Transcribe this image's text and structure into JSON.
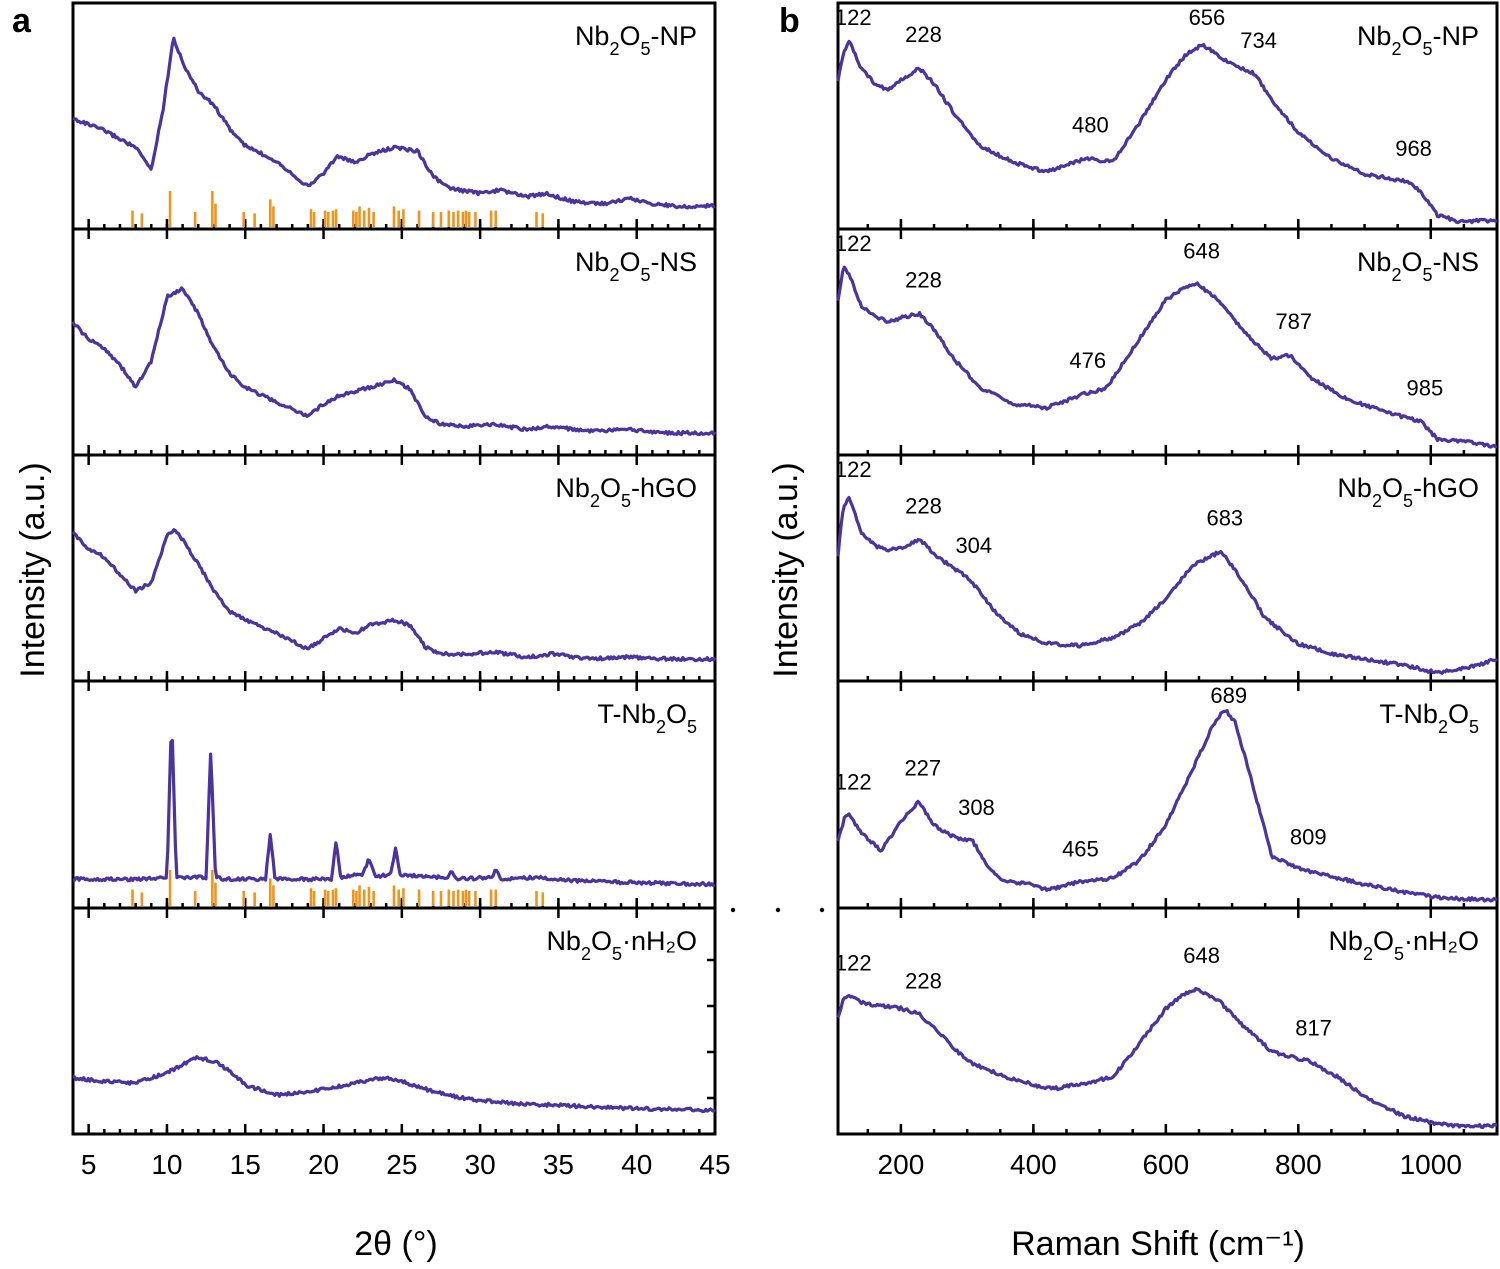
{
  "figure": {
    "panel_a": {
      "letter": "a"
    },
    "panel_b": {
      "letter": "b"
    }
  },
  "chart_data": [
    {
      "id": "xrd",
      "type": "line",
      "panel": "a",
      "xlabel": "2θ (°)",
      "ylabel": "Intensity (a.u.)",
      "xlim": [
        4,
        45
      ],
      "xticks": [
        5,
        10,
        15,
        20,
        25,
        30,
        35,
        40,
        45
      ],
      "xtick_labels": [
        "5",
        "10",
        "15",
        "20",
        "25",
        "30",
        "35",
        "40",
        "45"
      ],
      "ylim": [
        0,
        1
      ],
      "reference_lines_2theta": [
        7.8,
        8.4,
        10.2,
        11.8,
        12.9,
        13.1,
        14.9,
        15.6,
        16.6,
        16.8,
        19.2,
        19.4,
        20.1,
        20.3,
        20.6,
        20.8,
        21.9,
        22.1,
        22.3,
        22.6,
        22.9,
        23.2,
        24.5,
        24.8,
        25.1,
        26.1,
        27.0,
        27.5,
        28.0,
        28.3,
        28.6,
        28.9,
        29.1,
        29.3,
        29.7,
        30.7,
        31.0,
        33.6,
        34.0
      ],
      "reference_line_intensities": [
        0.3,
        0.2,
        1.0,
        0.25,
        1.0,
        0.55,
        0.25,
        0.2,
        0.7,
        0.45,
        0.35,
        0.25,
        0.3,
        0.25,
        0.3,
        0.35,
        0.3,
        0.25,
        0.45,
        0.3,
        0.4,
        0.25,
        0.45,
        0.3,
        0.35,
        0.3,
        0.25,
        0.25,
        0.3,
        0.25,
        0.3,
        0.25,
        0.3,
        0.25,
        0.25,
        0.3,
        0.3,
        0.25,
        0.2
      ],
      "series": [
        {
          "name": "Nb2O5-NP",
          "label_main": "Nb",
          "label_sub1": "2",
          "label_mid": "O",
          "label_sub2": "5",
          "label_suffix": "-NP",
          "ref_bars": true,
          "x": [
            4,
            6,
            8,
            9,
            9.8,
            10.4,
            11,
            12,
            13,
            14,
            15,
            17,
            19,
            20,
            20.9,
            22,
            23,
            24.5,
            26,
            27,
            28,
            30,
            31.3,
            33,
            34.2,
            36,
            38,
            39.5,
            41,
            43,
            45
          ],
          "y": [
            0.52,
            0.45,
            0.35,
            0.22,
            0.6,
            1.0,
            0.85,
            0.68,
            0.6,
            0.46,
            0.36,
            0.27,
            0.12,
            0.2,
            0.3,
            0.26,
            0.31,
            0.35,
            0.33,
            0.18,
            0.11,
            0.08,
            0.1,
            0.06,
            0.08,
            0.03,
            0.02,
            0.05,
            0.02,
            0.0,
            0.01
          ]
        },
        {
          "name": "Nb2O5-NS",
          "label_main": "Nb",
          "label_sub1": "2",
          "label_mid": "O",
          "label_sub2": "5",
          "label_suffix": "-NS",
          "ref_bars": false,
          "x": [
            4,
            5,
            6,
            7,
            8,
            9,
            10,
            11,
            12,
            13,
            14,
            15,
            17,
            19,
            20,
            21,
            23,
            24.5,
            25.5,
            26.5,
            27.5,
            29,
            31,
            33,
            34.5,
            37,
            39.5,
            42,
            45
          ],
          "y": [
            0.65,
            0.55,
            0.5,
            0.4,
            0.27,
            0.42,
            0.8,
            0.85,
            0.7,
            0.5,
            0.35,
            0.27,
            0.18,
            0.1,
            0.17,
            0.22,
            0.27,
            0.31,
            0.26,
            0.1,
            0.05,
            0.04,
            0.05,
            0.02,
            0.04,
            0.01,
            0.02,
            0.0,
            0.0
          ]
        },
        {
          "name": "Nb2O5-hGO",
          "label_main": "Nb",
          "label_sub1": "2",
          "label_mid": "O",
          "label_sub2": "5",
          "label_suffix": "-hGO",
          "ref_bars": false,
          "x": [
            4,
            5,
            6,
            7,
            8,
            9,
            10,
            10.5,
            11,
            12,
            13,
            14,
            15,
            17,
            19,
            20,
            21,
            22,
            23,
            24.5,
            25.5,
            26.5,
            27.5,
            29,
            31,
            33,
            34.5,
            37,
            39.5,
            42,
            45
          ],
          "y": [
            0.74,
            0.65,
            0.6,
            0.5,
            0.4,
            0.45,
            0.72,
            0.77,
            0.7,
            0.56,
            0.4,
            0.28,
            0.23,
            0.15,
            0.06,
            0.12,
            0.18,
            0.15,
            0.2,
            0.23,
            0.2,
            0.07,
            0.03,
            0.03,
            0.04,
            0.01,
            0.03,
            0.0,
            0.01,
            0.0,
            0.0
          ]
        },
        {
          "name": "T-Nb2O5",
          "label_main": "T-Nb",
          "label_sub1": "2",
          "label_mid": "O",
          "label_sub2": "5",
          "label_suffix": "",
          "ref_bars": true,
          "x": [
            4,
            7.8,
            10.0,
            10.3,
            10.6,
            12.5,
            12.8,
            13.1,
            13.5,
            16.3,
            16.6,
            16.9,
            20.5,
            20.8,
            21.1,
            22.5,
            22.9,
            23.3,
            24.3,
            24.6,
            24.9,
            26.1,
            27.9,
            28.2,
            28.5,
            30.8,
            31.0,
            31.3,
            33.6,
            36,
            40,
            45
          ],
          "y": [
            0.04,
            0.04,
            0.05,
            1.0,
            0.05,
            0.05,
            0.8,
            0.06,
            0.04,
            0.04,
            0.31,
            0.04,
            0.04,
            0.26,
            0.05,
            0.07,
            0.16,
            0.05,
            0.07,
            0.22,
            0.06,
            0.06,
            0.05,
            0.09,
            0.04,
            0.05,
            0.1,
            0.04,
            0.05,
            0.03,
            0.02,
            0.01
          ]
        },
        {
          "name": "Nb2O5·nH2O",
          "label_main": "Nb",
          "label_sub1": "2",
          "label_mid": "O",
          "label_sub2": "5",
          "label_suffix": "·nH₂O",
          "ref_bars": false,
          "x": [
            4,
            6,
            8,
            10,
            11,
            12,
            13,
            14,
            15,
            17,
            19,
            21,
            23,
            24,
            25,
            27,
            29,
            32,
            35,
            40,
            45
          ],
          "y": [
            0.2,
            0.18,
            0.17,
            0.23,
            0.28,
            0.32,
            0.3,
            0.24,
            0.16,
            0.1,
            0.12,
            0.15,
            0.19,
            0.2,
            0.18,
            0.12,
            0.08,
            0.05,
            0.04,
            0.02,
            0.01
          ]
        }
      ]
    },
    {
      "id": "raman",
      "type": "line",
      "panel": "b",
      "xlabel": "Raman Shift (cm⁻¹)",
      "ylabel": "Intensity (a.u.)",
      "xlim": [
        105,
        1100
      ],
      "xticks": [
        200,
        400,
        600,
        800,
        1000
      ],
      "xtick_labels": [
        "200",
        "400",
        "600",
        "800",
        "1000"
      ],
      "ylim": [
        0,
        1
      ],
      "series": [
        {
          "name": "Nb2O5-NP",
          "label_main": "Nb",
          "label_sub1": "2",
          "label_mid": "O",
          "label_sub2": "5",
          "label_suffix": "-NP",
          "x": [
            105,
            113,
            122,
            140,
            160,
            180,
            200,
            228,
            250,
            280,
            320,
            370,
            420,
            480,
            520,
            560,
            600,
            630,
            656,
            690,
            734,
            760,
            800,
            850,
            900,
            968,
            985,
            1010,
            1040,
            1100
          ],
          "y": [
            0.72,
            0.85,
            0.92,
            0.78,
            0.7,
            0.67,
            0.72,
            0.78,
            0.7,
            0.55,
            0.38,
            0.3,
            0.25,
            0.32,
            0.3,
            0.5,
            0.72,
            0.85,
            0.9,
            0.82,
            0.75,
            0.62,
            0.45,
            0.32,
            0.24,
            0.2,
            0.15,
            0.03,
            0.0,
            0.0
          ],
          "peaks": [
            {
              "label": "122",
              "x": 122
            },
            {
              "label": "228",
              "x": 228
            },
            {
              "label": "480",
              "x": 480
            },
            {
              "label": "656",
              "x": 656
            },
            {
              "label": "734",
              "x": 734
            },
            {
              "label": "968",
              "x": 968
            }
          ]
        },
        {
          "name": "Nb2O5-NS",
          "label_main": "Nb",
          "label_sub1": "2",
          "label_mid": "O",
          "label_sub2": "5",
          "label_suffix": "-NS",
          "x": [
            105,
            113,
            122,
            140,
            160,
            180,
            200,
            228,
            250,
            280,
            320,
            370,
            420,
            476,
            510,
            560,
            600,
            630,
            648,
            680,
            720,
            760,
            787,
            820,
            870,
            930,
            985,
            1010,
            1050,
            1100
          ],
          "y": [
            0.75,
            0.92,
            0.88,
            0.72,
            0.67,
            0.64,
            0.66,
            0.68,
            0.6,
            0.45,
            0.3,
            0.22,
            0.2,
            0.27,
            0.3,
            0.55,
            0.75,
            0.82,
            0.83,
            0.75,
            0.58,
            0.45,
            0.47,
            0.35,
            0.25,
            0.18,
            0.13,
            0.04,
            0.03,
            0.0
          ],
          "peaks": [
            {
              "label": "122",
              "x": 122
            },
            {
              "label": "228",
              "x": 228
            },
            {
              "label": "476",
              "x": 476
            },
            {
              "label": "648",
              "x": 648
            },
            {
              "label": "787",
              "x": 787
            },
            {
              "label": "985",
              "x": 985
            }
          ]
        },
        {
          "name": "Nb2O5-hGO",
          "label_main": "Nb",
          "label_sub1": "2",
          "label_mid": "O",
          "label_sub2": "5",
          "label_suffix": "-hGO",
          "x": [
            105,
            113,
            122,
            140,
            160,
            180,
            200,
            228,
            260,
            304,
            340,
            380,
            420,
            470,
            520,
            560,
            600,
            640,
            683,
            710,
            750,
            800,
            850,
            900,
            960,
            1010,
            1060,
            1100
          ],
          "y": [
            0.6,
            0.85,
            0.9,
            0.72,
            0.65,
            0.63,
            0.64,
            0.68,
            0.58,
            0.48,
            0.32,
            0.2,
            0.15,
            0.14,
            0.18,
            0.25,
            0.38,
            0.55,
            0.62,
            0.5,
            0.28,
            0.15,
            0.1,
            0.07,
            0.04,
            0.0,
            0.03,
            0.07
          ],
          "peaks": [
            {
              "label": "122",
              "x": 122
            },
            {
              "label": "228",
              "x": 228
            },
            {
              "label": "304",
              "x": 304
            },
            {
              "label": "683",
              "x": 683
            }
          ]
        },
        {
          "name": "T-Nb2O5",
          "label_main": "T-Nb",
          "label_sub1": "2",
          "label_mid": "O",
          "label_sub2": "5",
          "label_suffix": "",
          "x": [
            105,
            115,
            122,
            140,
            170,
            200,
            227,
            250,
            280,
            308,
            330,
            350,
            400,
            420,
            465,
            520,
            560,
            600,
            640,
            670,
            689,
            705,
            730,
            760,
            809,
            850,
            900,
            960,
            1020,
            1100
          ],
          "y": [
            0.3,
            0.42,
            0.43,
            0.34,
            0.25,
            0.4,
            0.5,
            0.38,
            0.32,
            0.3,
            0.18,
            0.1,
            0.08,
            0.05,
            0.09,
            0.11,
            0.2,
            0.38,
            0.66,
            0.88,
            0.97,
            0.9,
            0.6,
            0.22,
            0.15,
            0.12,
            0.08,
            0.04,
            0.01,
            0.0
          ],
          "peaks": [
            {
              "label": "122",
              "x": 122
            },
            {
              "label": "227",
              "x": 227
            },
            {
              "label": "308",
              "x": 308
            },
            {
              "label": "465",
              "x": 465
            },
            {
              "label": "689",
              "x": 689
            },
            {
              "label": "809",
              "x": 809
            }
          ]
        },
        {
          "name": "Nb2O5·nH2O",
          "label_main": "Nb",
          "label_sub1": "2",
          "label_mid": "O",
          "label_sub2": "5",
          "label_suffix": "·nH₂O",
          "x": [
            105,
            113,
            122,
            150,
            200,
            228,
            260,
            300,
            350,
            400,
            430,
            480,
            520,
            560,
            600,
            630,
            648,
            680,
            720,
            760,
            817,
            860,
            900,
            960,
            1010,
            1050,
            1100
          ],
          "y": [
            0.55,
            0.65,
            0.66,
            0.62,
            0.6,
            0.57,
            0.47,
            0.33,
            0.26,
            0.21,
            0.19,
            0.22,
            0.25,
            0.42,
            0.6,
            0.68,
            0.7,
            0.64,
            0.5,
            0.38,
            0.33,
            0.25,
            0.15,
            0.05,
            0.01,
            0.0,
            0.0
          ],
          "peaks": [
            {
              "label": "122",
              "x": 122
            },
            {
              "label": "228",
              "x": 228
            },
            {
              "label": "648",
              "x": 648
            },
            {
              "label": "817",
              "x": 817
            }
          ]
        }
      ]
    }
  ]
}
